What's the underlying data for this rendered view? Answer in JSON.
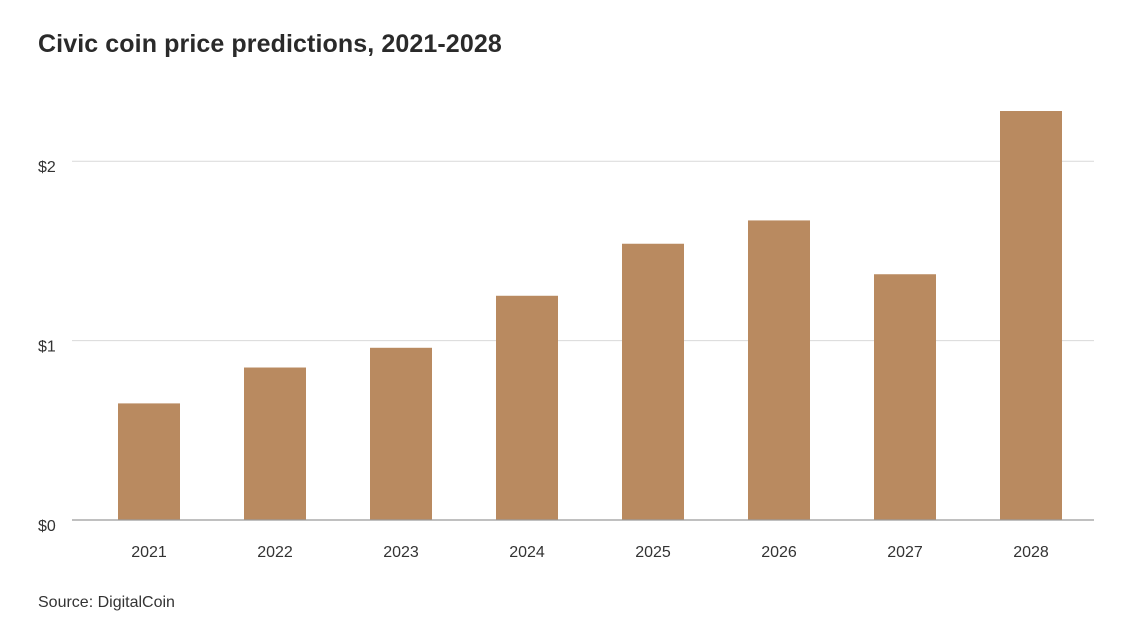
{
  "source": "Source: DigitalCoin",
  "colors": {
    "bar": "#b98a60",
    "gridline": "#d9d9d9",
    "baseline": "#9a9a9a"
  },
  "chart_data": {
    "type": "bar",
    "title": "Civic coin price predictions, 2021-2028",
    "xlabel": "",
    "ylabel": "",
    "categories": [
      "2021",
      "2022",
      "2023",
      "2024",
      "2025",
      "2026",
      "2027",
      "2028"
    ],
    "values": [
      0.65,
      0.85,
      0.96,
      1.25,
      1.54,
      1.67,
      1.37,
      2.28
    ],
    "ylim": [
      0,
      2.28
    ],
    "yticks": [
      0,
      1,
      2
    ],
    "ytick_labels": [
      "$0",
      "$1",
      "$2"
    ],
    "grid": true,
    "legend": "none"
  }
}
